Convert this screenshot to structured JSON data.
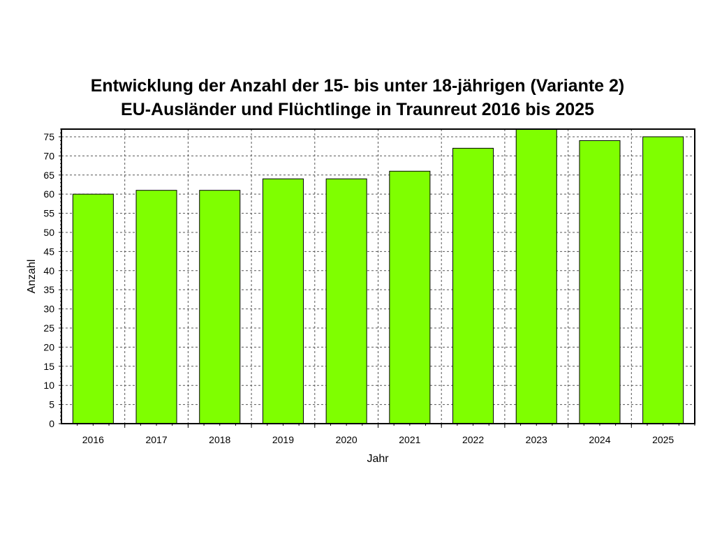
{
  "chart_data": {
    "type": "bar",
    "title": "Entwicklung der Anzahl der 15- bis unter 18-jährigen (Variante 2)",
    "subtitle": "EU-Ausländer und Flüchtlinge in Traunreut 2016 bis 2025",
    "xlabel": "Jahr",
    "ylabel": "Anzahl",
    "categories": [
      "2016",
      "2017",
      "2018",
      "2019",
      "2020",
      "2021",
      "2022",
      "2023",
      "2024",
      "2025"
    ],
    "values": [
      60,
      61,
      61,
      64,
      64,
      66,
      72,
      77,
      74,
      75
    ],
    "ylim": [
      0,
      77
    ],
    "yticks": [
      0,
      5,
      10,
      15,
      20,
      25,
      30,
      35,
      40,
      45,
      50,
      55,
      60,
      65,
      70,
      75
    ],
    "grid": true,
    "bar_color": "#7fff00",
    "bar_edge_color": "#000000"
  }
}
